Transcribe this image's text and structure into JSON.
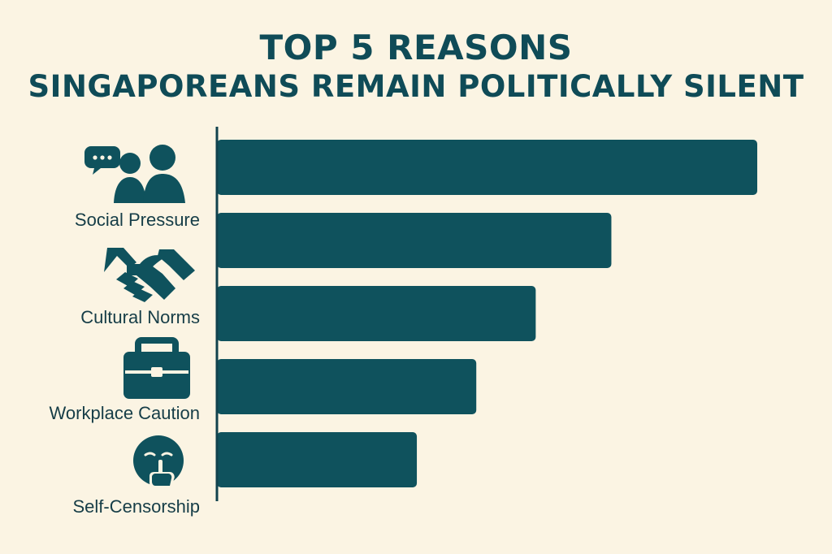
{
  "page": {
    "background_color": "#fbf4e3",
    "title_line_1": "TOP 5 REASONS",
    "title_line_2": "SINGAPOREANS REMAIN POLITICALLY SILENT"
  },
  "chart_data": {
    "type": "bar",
    "orientation": "horizontal",
    "title": "TOP 5 REASONS SINGAPOREANS REMAIN POLITICALLY SILENT",
    "categories": [
      "",
      "Social Pressure",
      "Cultural Norms",
      "Workplace Caution",
      "Self-Censorship"
    ],
    "values": [
      100,
      73,
      59,
      48,
      37
    ],
    "icons": [
      "chat-bubble-people-icon",
      "handshake-icon",
      "briefcase-icon",
      "shush-face-icon"
    ],
    "xlim": [
      0,
      100
    ],
    "grid": false,
    "bar_color": "#0f525d",
    "axis_color": "#11424d",
    "label_color": "#163d47"
  }
}
